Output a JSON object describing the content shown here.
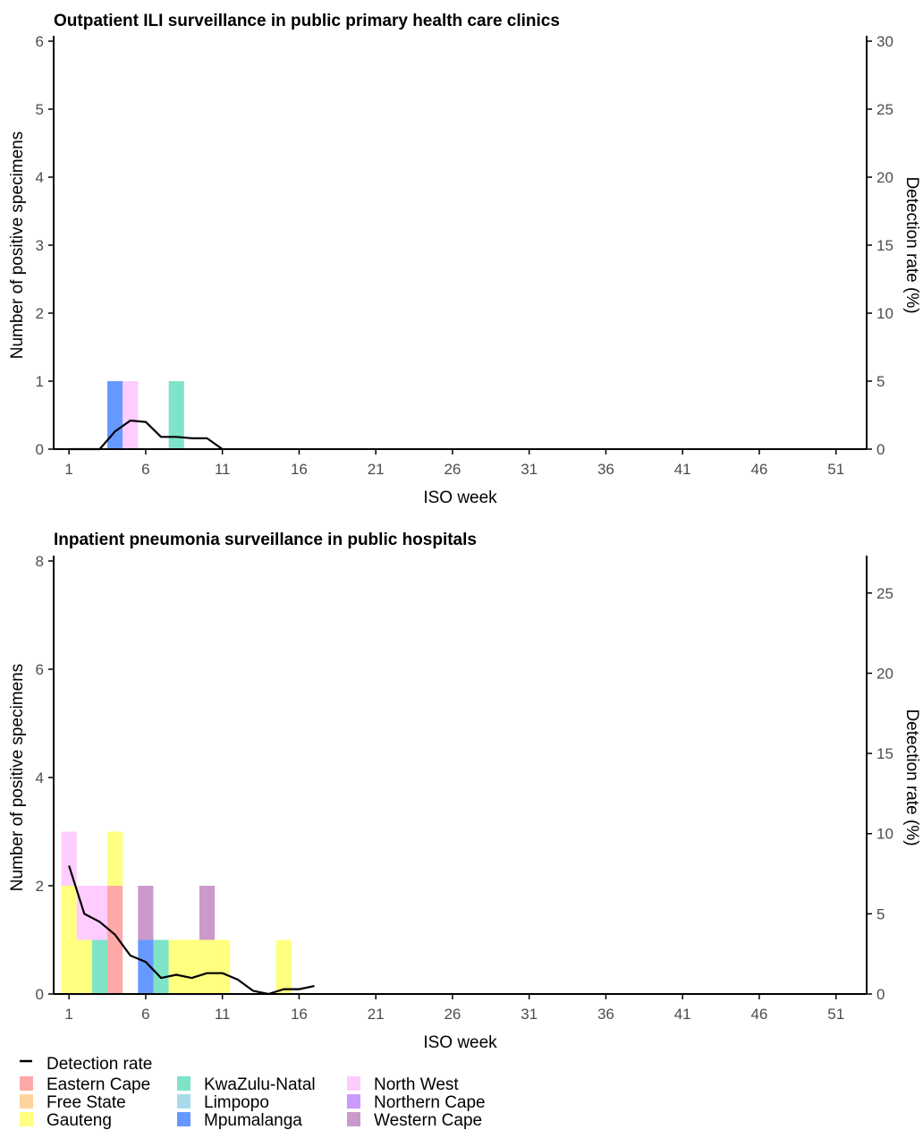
{
  "chart_data": [
    {
      "type": "bar",
      "stacked": true,
      "title": "Outpatient ILI surveillance in public primary health care clinics",
      "xlabel": "ISO week",
      "ylabel": "Number of positive specimens",
      "y2label": "Detection rate (%)",
      "xlim": [
        0,
        53
      ],
      "ylim": [
        0,
        6
      ],
      "y2lim": [
        0,
        30
      ],
      "xticks": [
        1,
        6,
        11,
        16,
        21,
        26,
        31,
        36,
        41,
        46,
        51
      ],
      "yticks": [
        0,
        1,
        2,
        3,
        4,
        5,
        6
      ],
      "y2ticks": [
        0,
        5,
        10,
        15,
        20,
        25,
        30
      ],
      "bars": [
        {
          "week": 4,
          "province": "Mpumalanga",
          "count": 1
        },
        {
          "week": 5,
          "province": "North West",
          "count": 1
        },
        {
          "week": 8,
          "province": "KwaZulu-Natal",
          "count": 1
        }
      ],
      "detection_rate": {
        "name": "Detection rate",
        "x": [
          1,
          2,
          3,
          4,
          5,
          6,
          7,
          8,
          9,
          10,
          11
        ],
        "y": [
          0,
          0,
          0,
          1.3,
          2.1,
          2.0,
          0.9,
          0.9,
          0.8,
          0.8,
          0
        ]
      }
    },
    {
      "type": "bar",
      "stacked": true,
      "title": "Inpatient pneumonia surveillance in public hospitals",
      "xlabel": "ISO week",
      "ylabel": "Number of positive specimens",
      "y2label": "Detection rate (%)",
      "xlim": [
        0,
        53
      ],
      "ylim": [
        0,
        8
      ],
      "y2lim": [
        0,
        27
      ],
      "xticks": [
        1,
        6,
        11,
        16,
        21,
        26,
        31,
        36,
        41,
        46,
        51
      ],
      "yticks": [
        0,
        2,
        4,
        6,
        8
      ],
      "y2ticks": [
        0,
        5,
        10,
        15,
        20,
        25
      ],
      "bars": [
        {
          "week": 1,
          "province": "Gauteng",
          "count": 2
        },
        {
          "week": 1,
          "province": "North West",
          "count": 1
        },
        {
          "week": 2,
          "province": "Gauteng",
          "count": 1
        },
        {
          "week": 2,
          "province": "North West",
          "count": 1
        },
        {
          "week": 3,
          "province": "KwaZulu-Natal",
          "count": 1
        },
        {
          "week": 3,
          "province": "North West",
          "count": 1
        },
        {
          "week": 4,
          "province": "Eastern Cape",
          "count": 2
        },
        {
          "week": 4,
          "province": "Gauteng",
          "count": 1
        },
        {
          "week": 6,
          "province": "Mpumalanga",
          "count": 1
        },
        {
          "week": 6,
          "province": "Western Cape",
          "count": 1
        },
        {
          "week": 7,
          "province": "KwaZulu-Natal",
          "count": 1
        },
        {
          "week": 8,
          "province": "Gauteng",
          "count": 1
        },
        {
          "week": 9,
          "province": "Gauteng",
          "count": 1
        },
        {
          "week": 10,
          "province": "Gauteng",
          "count": 1
        },
        {
          "week": 10,
          "province": "Western Cape",
          "count": 1
        },
        {
          "week": 11,
          "province": "Gauteng",
          "count": 1
        },
        {
          "week": 15,
          "province": "Gauteng",
          "count": 1
        }
      ],
      "detection_rate": {
        "name": "Detection rate",
        "x": [
          1,
          2,
          3,
          4,
          5,
          6,
          7,
          8,
          9,
          10,
          11,
          12,
          13,
          14,
          15,
          16,
          17
        ],
        "y": [
          8.0,
          5.0,
          4.5,
          3.7,
          2.4,
          2.0,
          1.0,
          1.2,
          1.0,
          1.3,
          1.3,
          0.9,
          0.2,
          0,
          0.3,
          0.3,
          0.5
        ]
      }
    }
  ],
  "legend": {
    "line_label": "Detection rate",
    "provinces": [
      {
        "name": "Eastern Cape",
        "color": "#FFA8A8"
      },
      {
        "name": "Free State",
        "color": "#FFD3A0"
      },
      {
        "name": "Gauteng",
        "color": "#FFFF80"
      },
      {
        "name": "KwaZulu-Natal",
        "color": "#7FE3C8"
      },
      {
        "name": "Limpopo",
        "color": "#A8DCEB"
      },
      {
        "name": "Mpumalanga",
        "color": "#6699FF"
      },
      {
        "name": "North West",
        "color": "#FFCCFF"
      },
      {
        "name": "Northern Cape",
        "color": "#CC99FF"
      },
      {
        "name": "Western Cape",
        "color": "#CC99CC"
      }
    ]
  },
  "colors": {
    "axis": "#000000",
    "tick_text": "#4d4d4d",
    "line": "#000000"
  }
}
